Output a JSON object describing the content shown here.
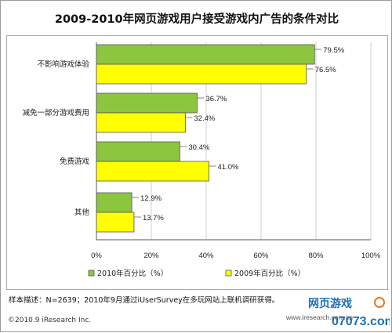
{
  "chart_data": {
    "type": "bar",
    "orientation": "horizontal",
    "title": "2009-2010年网页游戏用户接受游戏内广告的条件对比",
    "categories": [
      "不影响游戏体验",
      "减免一部分游戏费用",
      "免费游戏",
      "其他"
    ],
    "series": [
      {
        "name": "2010年百分比（%）",
        "color": "#8cc63f",
        "values": [
          79.5,
          36.7,
          30.4,
          12.9
        ]
      },
      {
        "name": "2009年百分比（%）",
        "color": "#ffff00",
        "values": [
          76.5,
          32.4,
          41.0,
          13.7
        ]
      }
    ],
    "value_labels": [
      [
        "79.5%",
        "36.7%",
        "30.4%",
        "12.9%"
      ],
      [
        "76.5%",
        "32.4%",
        "41.0%",
        "13.7%"
      ]
    ],
    "xlim": [
      0,
      100
    ],
    "x_ticks": [
      0,
      20,
      40,
      60,
      80,
      100
    ],
    "x_tick_labels": [
      "0%",
      "20%",
      "40%",
      "60%",
      "80%",
      "100%"
    ],
    "gridlines": true,
    "legend_position": "bottom"
  },
  "footer": {
    "note": "样本描述：N=2639；2010年9月通过iUserSurvey在多玩网站上联机调研获得。",
    "copyright": "©2010.9 iResearch Inc.",
    "website": "www.iresearch.com.cn"
  },
  "watermark": {
    "text_top": "网页游戏",
    "text_bottom": "07073.com"
  }
}
